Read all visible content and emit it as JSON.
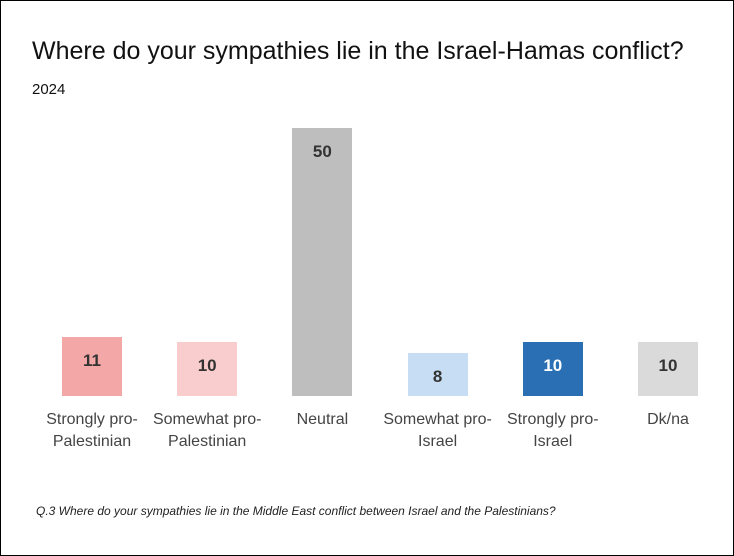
{
  "chart_data": {
    "type": "bar",
    "title": "Where do your sympathies lie in the Israel-Hamas conflict?",
    "subtitle": "2024",
    "categories": [
      "Strongly pro-Palestinian",
      "Somewhat pro-Palestinian",
      "Neutral",
      "Somewhat pro-Israel",
      "Strongly pro-Israel",
      "Dk/na"
    ],
    "values": [
      11,
      10,
      50,
      8,
      10,
      10
    ],
    "colors": [
      "#f4a7a7",
      "#f9cdcd",
      "#bebebe",
      "#c6ddf3",
      "#2a6eb4",
      "#dadada"
    ],
    "value_label_colors": [
      "#333333",
      "#333333",
      "#333333",
      "#333333",
      "#ffffff",
      "#333333"
    ],
    "note": "Q.3  Where do your sympathies lie in the Middle East conflict between Israel and the Palestinians?"
  }
}
